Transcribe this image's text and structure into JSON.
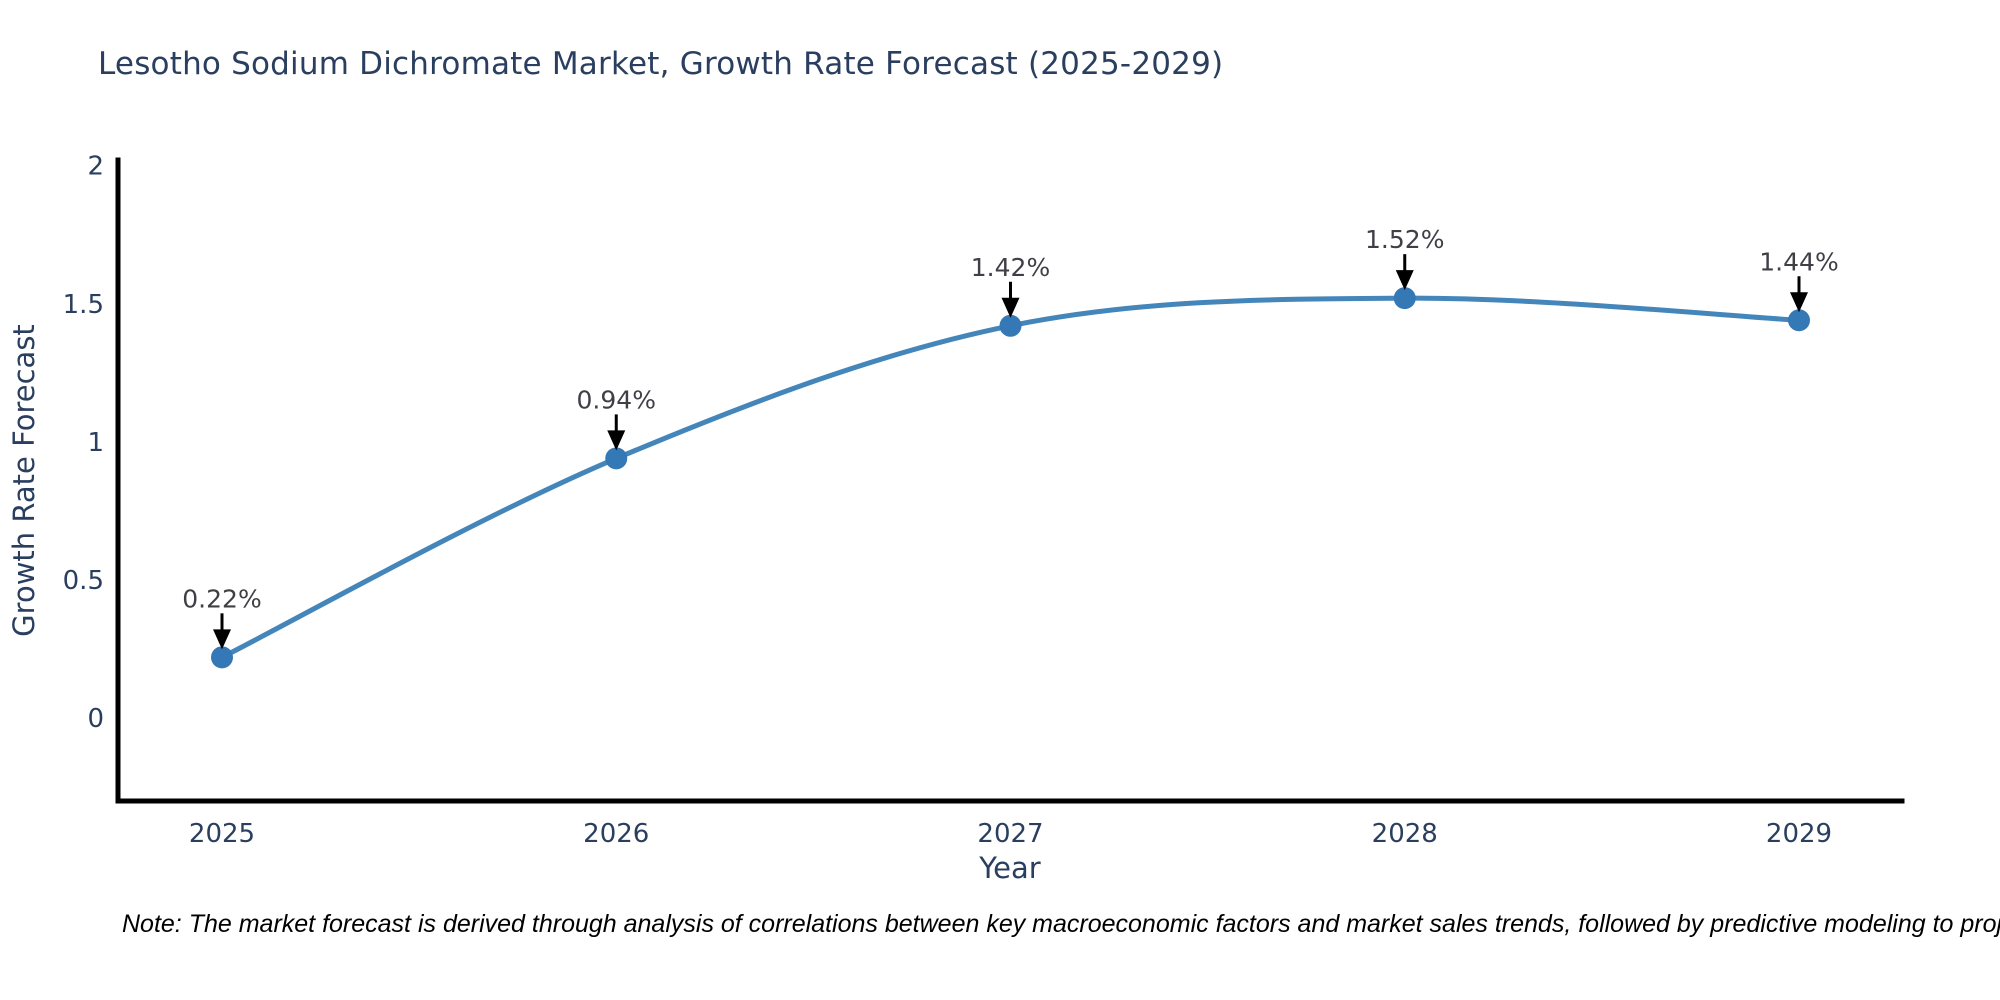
{
  "note": "Note: The market forecast is derived through analysis of correlations between key macroeconomic factors and market sales trends, followed by predictive modeling to project future sales",
  "chart_data": {
    "type": "line",
    "title": "Lesotho Sodium Dichromate Market, Growth Rate Forecast (2025-2029)",
    "xlabel": "Year",
    "ylabel": "Growth Rate Forecast",
    "categories": [
      "2025",
      "2026",
      "2027",
      "2028",
      "2029"
    ],
    "series": [
      {
        "name": "Growth Rate Forecast",
        "values": [
          0.22,
          0.94,
          1.42,
          1.52,
          1.44
        ],
        "point_labels": [
          "0.22%",
          "0.94%",
          "1.42%",
          "1.52%",
          "1.44%"
        ]
      }
    ],
    "yticks": [
      0,
      0.5,
      1,
      1.5,
      2
    ],
    "ylim": [
      -0.3,
      2.02
    ],
    "grid": false,
    "legend": false,
    "smooth": true,
    "annotations": "value labels with black down-arrows above each point",
    "colors": {
      "line": "#4586ba",
      "marker": "#3478b5",
      "axis": "#000000",
      "text": "#2a3f5f",
      "annotation_text": "#3f3f46",
      "arrow": "#000000",
      "background": "#ffffff"
    }
  }
}
